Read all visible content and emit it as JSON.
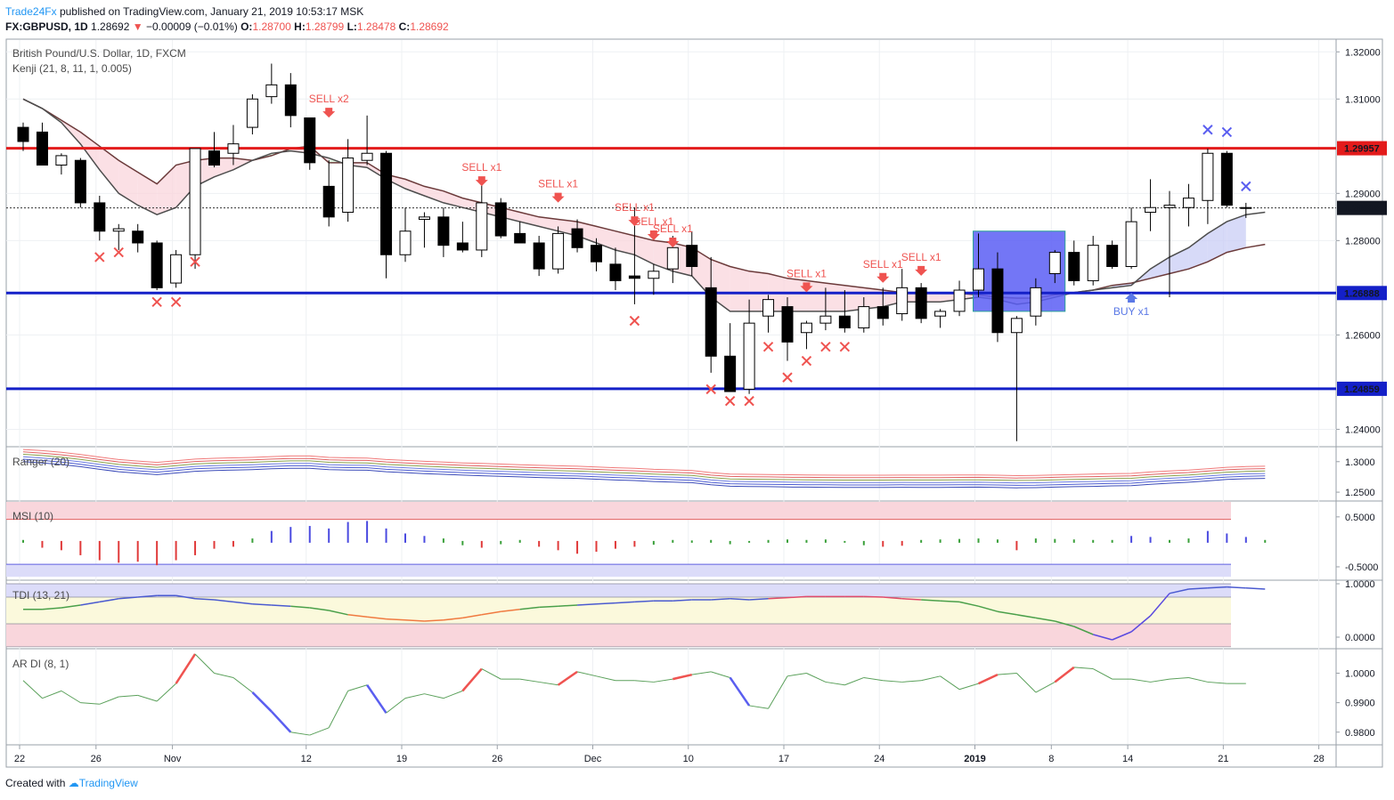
{
  "header": {
    "publisher": "Trade24Fx",
    "published_text": "published on TradingView.com, January 21, 2019 10:53:17 MSK",
    "symbol": "FX:GBPUSD, 1D",
    "last": "1.28692",
    "change": "−0.00009 (−0.01%)",
    "o_label": "O:",
    "o": "1.28700",
    "h_label": "H:",
    "h": "1.28799",
    "l_label": "L:",
    "l": "1.28478",
    "c_label": "C:",
    "c": "1.28692"
  },
  "footer": {
    "created_with": "Created with",
    "tradingview": "TradingView"
  },
  "chart_data": [
    {
      "type": "candlestick",
      "title": "British Pound/U.S. Dollar, 1D, FXCM",
      "indicator": "Kenji (21, 8, 11, 1, 0.005)",
      "ylim": [
        1.2365,
        1.3225
      ],
      "y_ticks": [
        "1.32000",
        "1.31000",
        "1.29000",
        "1.28000",
        "1.26000",
        "1.24000"
      ],
      "x_ticks": [
        "22",
        "26",
        "Nov",
        "12",
        "19",
        "26",
        "Dec",
        "10",
        "17",
        "24",
        "2019",
        "8",
        "14",
        "21",
        "28"
      ],
      "candles": [
        {
          "o": 1.304,
          "h": 1.305,
          "l": 1.299,
          "c": 1.301
        },
        {
          "o": 1.303,
          "h": 1.305,
          "l": 1.296,
          "c": 1.296
        },
        {
          "o": 1.296,
          "h": 1.2985,
          "l": 1.294,
          "c": 1.298
        },
        {
          "o": 1.297,
          "h": 1.2975,
          "l": 1.287,
          "c": 1.288
        },
        {
          "o": 1.288,
          "h": 1.2895,
          "l": 1.28,
          "c": 1.282
        },
        {
          "o": 1.282,
          "h": 1.2835,
          "l": 1.278,
          "c": 1.2825
        },
        {
          "o": 1.282,
          "h": 1.2835,
          "l": 1.2775,
          "c": 1.2795
        },
        {
          "o": 1.2795,
          "h": 1.28,
          "l": 1.2695,
          "c": 1.27
        },
        {
          "o": 1.271,
          "h": 1.278,
          "l": 1.27,
          "c": 1.277
        },
        {
          "o": 1.277,
          "h": 1.2995,
          "l": 1.274,
          "c": 1.2995
        },
        {
          "o": 1.299,
          "h": 1.303,
          "l": 1.2955,
          "c": 1.296
        },
        {
          "o": 1.2985,
          "h": 1.3045,
          "l": 1.296,
          "c": 1.3005
        },
        {
          "o": 1.304,
          "h": 1.311,
          "l": 1.3025,
          "c": 1.31
        },
        {
          "o": 1.3105,
          "h": 1.3175,
          "l": 1.309,
          "c": 1.313
        },
        {
          "o": 1.313,
          "h": 1.3155,
          "l": 1.304,
          "c": 1.3065
        },
        {
          "o": 1.306,
          "h": 1.306,
          "l": 1.295,
          "c": 1.2965
        },
        {
          "o": 1.2915,
          "h": 1.297,
          "l": 1.283,
          "c": 1.285
        },
        {
          "o": 1.286,
          "h": 1.3015,
          "l": 1.284,
          "c": 1.2975
        },
        {
          "o": 1.297,
          "h": 1.3065,
          "l": 1.296,
          "c": 1.2985
        },
        {
          "o": 1.2985,
          "h": 1.299,
          "l": 1.272,
          "c": 1.277
        },
        {
          "o": 1.277,
          "h": 1.287,
          "l": 1.2755,
          "c": 1.282
        },
        {
          "o": 1.2845,
          "h": 1.286,
          "l": 1.2785,
          "c": 1.285
        },
        {
          "o": 1.285,
          "h": 1.287,
          "l": 1.2765,
          "c": 1.279
        },
        {
          "o": 1.2795,
          "h": 1.284,
          "l": 1.2775,
          "c": 1.278
        },
        {
          "o": 1.278,
          "h": 1.2925,
          "l": 1.2765,
          "c": 1.288
        },
        {
          "o": 1.288,
          "h": 1.289,
          "l": 1.2805,
          "c": 1.281
        },
        {
          "o": 1.2815,
          "h": 1.284,
          "l": 1.2795,
          "c": 1.2795
        },
        {
          "o": 1.2795,
          "h": 1.281,
          "l": 1.2725,
          "c": 1.274
        },
        {
          "o": 1.274,
          "h": 1.283,
          "l": 1.273,
          "c": 1.2815
        },
        {
          "o": 1.2825,
          "h": 1.2845,
          "l": 1.2775,
          "c": 1.2785
        },
        {
          "o": 1.279,
          "h": 1.2805,
          "l": 1.2735,
          "c": 1.2755
        },
        {
          "o": 1.275,
          "h": 1.2785,
          "l": 1.2695,
          "c": 1.2715
        },
        {
          "o": 1.2725,
          "h": 1.287,
          "l": 1.2665,
          "c": 1.272
        },
        {
          "o": 1.272,
          "h": 1.275,
          "l": 1.2685,
          "c": 1.2735
        },
        {
          "o": 1.274,
          "h": 1.281,
          "l": 1.271,
          "c": 1.2785
        },
        {
          "o": 1.279,
          "h": 1.282,
          "l": 1.2725,
          "c": 1.2745
        },
        {
          "o": 1.27,
          "h": 1.2765,
          "l": 1.252,
          "c": 1.2555
        },
        {
          "o": 1.2555,
          "h": 1.2625,
          "l": 1.248,
          "c": 1.248
        },
        {
          "o": 1.2485,
          "h": 1.2675,
          "l": 1.2475,
          "c": 1.2625
        },
        {
          "o": 1.264,
          "h": 1.2685,
          "l": 1.2605,
          "c": 1.2675
        },
        {
          "o": 1.266,
          "h": 1.268,
          "l": 1.2545,
          "c": 1.2585
        },
        {
          "o": 1.2605,
          "h": 1.263,
          "l": 1.257,
          "c": 1.2625
        },
        {
          "o": 1.2625,
          "h": 1.27,
          "l": 1.261,
          "c": 1.264
        },
        {
          "o": 1.264,
          "h": 1.2695,
          "l": 1.2605,
          "c": 1.2615
        },
        {
          "o": 1.2615,
          "h": 1.268,
          "l": 1.2605,
          "c": 1.266
        },
        {
          "o": 1.266,
          "h": 1.27,
          "l": 1.262,
          "c": 1.2635
        },
        {
          "o": 1.2645,
          "h": 1.274,
          "l": 1.263,
          "c": 1.27
        },
        {
          "o": 1.27,
          "h": 1.271,
          "l": 1.2625,
          "c": 1.2635
        },
        {
          "o": 1.264,
          "h": 1.2655,
          "l": 1.2615,
          "c": 1.265
        },
        {
          "o": 1.265,
          "h": 1.2715,
          "l": 1.264,
          "c": 1.2695
        },
        {
          "o": 1.2695,
          "h": 1.2815,
          "l": 1.268,
          "c": 1.274
        },
        {
          "o": 1.274,
          "h": 1.2775,
          "l": 1.2585,
          "c": 1.2605
        },
        {
          "o": 1.2605,
          "h": 1.264,
          "l": 1.2375,
          "c": 1.2635
        },
        {
          "o": 1.264,
          "h": 1.272,
          "l": 1.262,
          "c": 1.27
        },
        {
          "o": 1.273,
          "h": 1.278,
          "l": 1.271,
          "c": 1.2775
        },
        {
          "o": 1.2775,
          "h": 1.28,
          "l": 1.2705,
          "c": 1.2715
        },
        {
          "o": 1.2715,
          "h": 1.281,
          "l": 1.2705,
          "c": 1.279
        },
        {
          "o": 1.279,
          "h": 1.28,
          "l": 1.274,
          "c": 1.2745
        },
        {
          "o": 1.2745,
          "h": 1.287,
          "l": 1.274,
          "c": 1.284
        },
        {
          "o": 1.286,
          "h": 1.293,
          "l": 1.282,
          "c": 1.287
        },
        {
          "o": 1.287,
          "h": 1.2905,
          "l": 1.268,
          "c": 1.2875
        },
        {
          "o": 1.287,
          "h": 1.292,
          "l": 1.283,
          "c": 1.289
        },
        {
          "o": 1.2885,
          "h": 1.2995,
          "l": 1.2835,
          "c": 1.2985
        },
        {
          "o": 1.2985,
          "h": 1.299,
          "l": 1.287,
          "c": 1.2875
        },
        {
          "o": 1.287,
          "h": 1.288,
          "l": 1.2848,
          "c": 1.2869
        }
      ],
      "horizontal_levels": [
        {
          "value": 1.29957,
          "label": "1.29957",
          "color": "#e31b1b"
        },
        {
          "value": 1.26888,
          "label": "1.26888",
          "color": "#1420c8"
        },
        {
          "value": 1.24859,
          "label": "1.24859",
          "color": "#1420c8"
        }
      ],
      "last_price": {
        "value": 1.28692,
        "label": "1.28692"
      },
      "signals": [
        {
          "i": 16,
          "text": "SELL x2",
          "side": "sell",
          "y": 1.307
        },
        {
          "i": 24,
          "text": "SELL x1",
          "side": "sell",
          "y": 1.2925
        },
        {
          "i": 28,
          "text": "SELL x1",
          "side": "sell",
          "y": 1.289
        },
        {
          "i": 32,
          "text": "SELL x1",
          "side": "sell",
          "y": 1.284
        },
        {
          "i": 33,
          "text": "SELL x1",
          "side": "sell",
          "y": 1.281
        },
        {
          "i": 34,
          "text": "SELL x1",
          "side": "sell",
          "y": 1.2795
        },
        {
          "i": 41,
          "text": "SELL x1",
          "side": "sell",
          "y": 1.27
        },
        {
          "i": 45,
          "text": "SELL x1",
          "side": "sell",
          "y": 1.272
        },
        {
          "i": 47,
          "text": "SELL x1",
          "side": "sell",
          "y": 1.2735
        },
        {
          "i": 58,
          "text": "BUY x1",
          "side": "buy",
          "y": 1.268
        }
      ],
      "low_crosses": [
        {
          "i": 4,
          "y": 1.2765
        },
        {
          "i": 5,
          "y": 1.2775
        },
        {
          "i": 7,
          "y": 1.267
        },
        {
          "i": 8,
          "y": 1.267
        },
        {
          "i": 9,
          "y": 1.2755
        },
        {
          "i": 32,
          "y": 1.263
        },
        {
          "i": 36,
          "y": 1.2485
        },
        {
          "i": 37,
          "y": 1.246
        },
        {
          "i": 38,
          "y": 1.246
        },
        {
          "i": 39,
          "y": 1.2575
        },
        {
          "i": 40,
          "y": 1.251
        },
        {
          "i": 41,
          "y": 1.2545
        },
        {
          "i": 42,
          "y": 1.2575
        },
        {
          "i": 43,
          "y": 1.2575
        }
      ],
      "high_crosses": [
        {
          "i": 62,
          "y": 1.3035
        },
        {
          "i": 63,
          "y": 1.303
        },
        {
          "i": 64,
          "y": 1.2915
        }
      ],
      "kenji_fast": [
        1.31,
        1.308,
        1.305,
        1.3005,
        1.295,
        1.29,
        1.2875,
        1.2855,
        1.287,
        1.2915,
        1.2935,
        1.295,
        1.297,
        1.2985,
        1.299,
        1.2985,
        1.2975,
        1.296,
        1.2955,
        1.293,
        1.291,
        1.2895,
        1.288,
        1.287,
        1.286,
        1.285,
        1.284,
        1.283,
        1.282,
        1.281,
        1.2795,
        1.278,
        1.277,
        1.275,
        1.2735,
        1.2725,
        1.268,
        1.265,
        1.265,
        1.265,
        1.265,
        1.265,
        1.265,
        1.265,
        1.2655,
        1.266,
        1.267,
        1.267,
        1.267,
        1.2675,
        1.268,
        1.2675,
        1.2665,
        1.267,
        1.268,
        1.269,
        1.2695,
        1.27,
        1.2705,
        1.274,
        1.2765,
        1.2785,
        1.2815,
        1.284,
        1.2855,
        1.286
      ],
      "kenji_slow": [
        1.31,
        1.308,
        1.3055,
        1.303,
        1.3,
        1.297,
        1.2945,
        1.292,
        1.296,
        1.297,
        1.2975,
        1.2975,
        1.297,
        1.298,
        1.2995,
        1.3,
        1.2965,
        1.2965,
        1.2965,
        1.294,
        1.293,
        1.2915,
        1.2905,
        1.289,
        1.288,
        1.287,
        1.286,
        1.285,
        1.2845,
        1.284,
        1.283,
        1.282,
        1.281,
        1.28,
        1.2795,
        1.2785,
        1.276,
        1.2745,
        1.2735,
        1.273,
        1.272,
        1.2715,
        1.271,
        1.2705,
        1.27,
        1.2695,
        1.269,
        1.2688,
        1.2688,
        1.2688,
        1.2685,
        1.268,
        1.2678,
        1.2678,
        1.2685,
        1.269,
        1.2695,
        1.2705,
        1.271,
        1.272,
        1.273,
        1.274,
        1.2755,
        1.2775,
        1.2785,
        1.2792
      ],
      "box": {
        "from": 50,
        "to": 55,
        "top": 1.282,
        "bottom": 1.265,
        "color": "#5b5ef5"
      }
    },
    {
      "type": "line",
      "title": "Ranger (20)",
      "ylim": [
        1.237,
        1.323
      ],
      "y_ticks": [
        "1.3000",
        "1.2500"
      ]
    },
    {
      "type": "bar",
      "title": "MSI (10)",
      "ylim": [
        -0.75,
        0.8
      ],
      "y_ticks": [
        "0.5000",
        "-0.5000"
      ],
      "values": [
        0.02,
        -0.1,
        -0.15,
        -0.25,
        -0.35,
        -0.4,
        -0.38,
        -0.45,
        -0.35,
        -0.25,
        -0.12,
        -0.08,
        0.05,
        0.2,
        0.28,
        0.3,
        0.25,
        0.38,
        0.4,
        0.25,
        0.15,
        0.1,
        0.05,
        -0.05,
        -0.1,
        -0.03,
        0.02,
        -0.08,
        -0.15,
        -0.22,
        -0.18,
        -0.12,
        -0.08,
        -0.04,
        0.02,
        0.01,
        0.02,
        -0.03,
        0.0,
        0.02,
        0.03,
        0.02,
        0.03,
        0.0,
        -0.05,
        -0.08,
        -0.06,
        0.02,
        0.03,
        0.04,
        0.05,
        0.03,
        -0.15,
        0.05,
        0.04,
        0.03,
        0.02,
        0.02,
        0.1,
        0.08,
        0.02,
        0.05,
        0.2,
        0.15,
        0.08,
        0.02
      ]
    },
    {
      "type": "line",
      "title": "TDI (13, 21)",
      "ylim": [
        -0.2,
        1.05
      ],
      "y_ticks": [
        "1.0000",
        "0.0000"
      ]
    },
    {
      "type": "line",
      "title": "AR DI (8, 1)",
      "ylim": [
        0.976,
        1.008
      ],
      "y_ticks": [
        "1.0000",
        "0.9900",
        "0.9800"
      ]
    }
  ]
}
